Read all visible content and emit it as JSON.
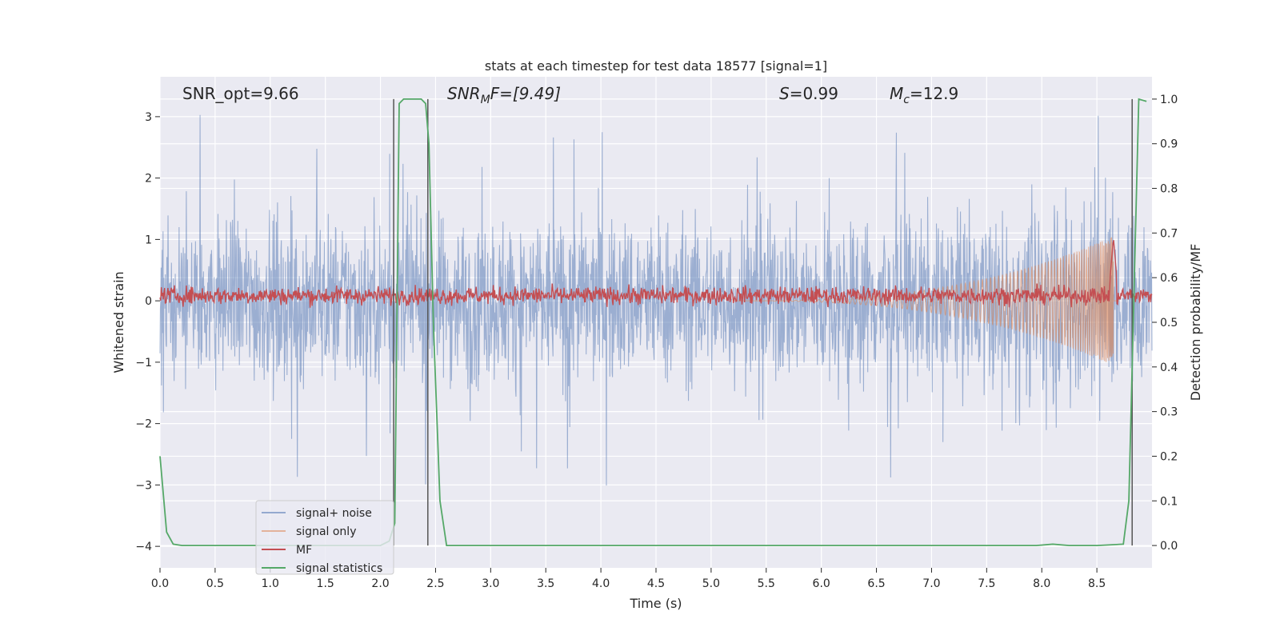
{
  "chart_data": {
    "type": "line",
    "title": "stats at each timestep for test data 18577 [signal=1]",
    "xlabel": "Time (s)",
    "ylabel_left": "Whitened strain",
    "ylabel_right": "Detection probability/MF",
    "xlim": [
      0,
      9
    ],
    "ylim_left": [
      -4.35,
      3.65
    ],
    "ylim_right": [
      -0.05,
      1.05
    ],
    "x_ticks": [
      "0.0",
      "0.5",
      "1.0",
      "1.5",
      "2.0",
      "2.5",
      "3.0",
      "3.5",
      "4.0",
      "4.5",
      "5.0",
      "5.5",
      "6.0",
      "6.5",
      "7.0",
      "7.5",
      "8.0",
      "8.5"
    ],
    "y_ticks_left": [
      "3",
      "2",
      "1",
      "0",
      "−1",
      "−2",
      "−3",
      "−4"
    ],
    "y_ticks_right": [
      "1.0",
      "0.9",
      "0.8",
      "0.7",
      "0.6",
      "0.5",
      "0.4",
      "0.3",
      "0.2",
      "0.1",
      "0.0"
    ],
    "annotations": {
      "snr_opt": "SNR_opt=9.66",
      "snr_mf_label": "SNR",
      "snr_mf_sub": "M",
      "snr_mf_rest": "F=[9.49]",
      "s_label": "S",
      "s_value": "=0.99",
      "mc_label": "M",
      "mc_sub": "c",
      "mc_value": "=12.9"
    },
    "vertical_lines_x": [
      2.12,
      2.43,
      8.82
    ],
    "series": [
      {
        "name": "signal+ noise",
        "color": "#4c72b0",
        "axis": "left",
        "envelope_typical": 1.2,
        "envelope_peak": 3.1,
        "envelope_min": -3.4
      },
      {
        "name": "signal only",
        "color": "#dd8452",
        "axis": "left",
        "onset": 5.2,
        "merger": 8.65,
        "peak_amplitude": 1.05
      },
      {
        "name": "MF",
        "color": "#c44e52",
        "axis": "right",
        "baseline": 0.56,
        "noise": 0.02,
        "spike_x": 8.65,
        "spike_value": 0.69
      },
      {
        "name": "signal statistics",
        "color": "#55a868",
        "axis": "right",
        "x": [
          0.0,
          0.06,
          0.12,
          0.2,
          0.5,
          1.0,
          1.5,
          2.0,
          2.08,
          2.13,
          2.17,
          2.21,
          2.3,
          2.37,
          2.41,
          2.44,
          2.48,
          2.54,
          2.6,
          3.0,
          4.0,
          5.0,
          6.0,
          7.0,
          7.95,
          8.1,
          8.25,
          8.5,
          8.74,
          8.79,
          8.84,
          8.88,
          8.95
        ],
        "y": [
          0.2,
          0.03,
          0.003,
          0.0,
          0.0,
          0.0,
          0.0,
          0.0,
          0.01,
          0.05,
          0.99,
          1.0,
          1.0,
          1.0,
          0.99,
          0.9,
          0.5,
          0.1,
          0.0,
          0.0,
          0.0,
          0.0,
          0.0,
          0.0,
          0.0,
          0.003,
          0.0,
          0.0,
          0.003,
          0.1,
          0.6,
          1.0,
          0.995
        ]
      }
    ],
    "legend_placement": "lower-left",
    "grid": true,
    "colors": {
      "axes_bg": "#eaeaf2",
      "grid": "#ffffff",
      "vline": "#555555"
    }
  }
}
